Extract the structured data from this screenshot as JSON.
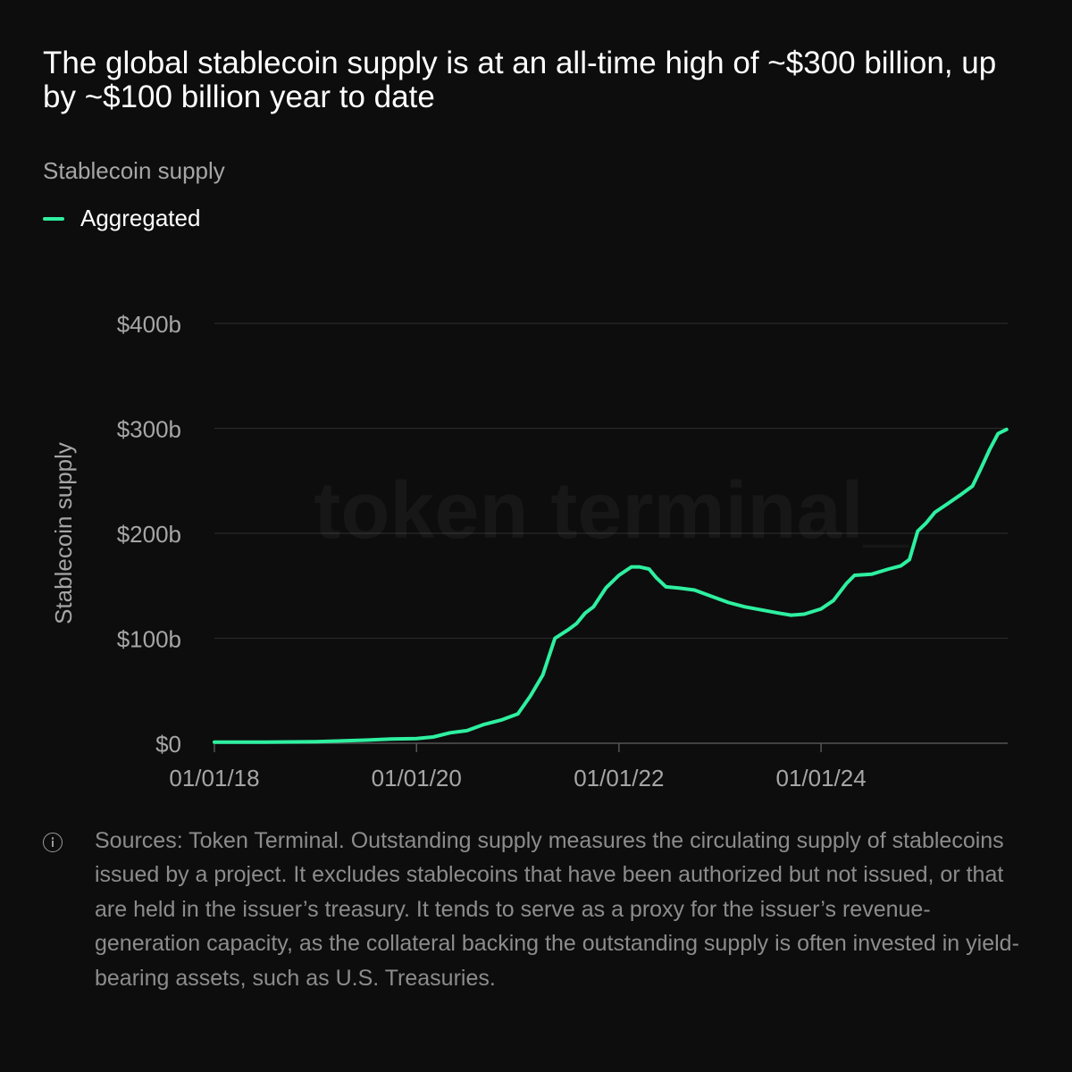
{
  "title": "The global stablecoin supply is at an all-time high of ~$300 billion, up by ~$100 billion year to date",
  "subtitle": "Stablecoin supply",
  "watermark": "token terminal_",
  "footnote": "Sources: Token Terminal. Outstanding supply measures the circulating supply of stablecoins issued by a project. It excludes stablecoins that have been authorized but not issued, or that are held in the issuer’s treasury. It tends to serve as a proxy for the issuer’s revenue-generation capacity, as the collateral backing the outstanding supply is often invested in yield-bearing assets, such as U.S. Treasuries.",
  "icons": {
    "footnote": "info-icon"
  },
  "colors": {
    "series": "#2ef0a0",
    "background": "#0d0d0d"
  },
  "chart_data": {
    "type": "line",
    "ylabel": "Stablecoin supply",
    "xlabel": "",
    "ylim": [
      0,
      400
    ],
    "yticks": [
      {
        "value": 0,
        "label": "$0"
      },
      {
        "value": 100,
        "label": "$100b"
      },
      {
        "value": 200,
        "label": "$200b"
      },
      {
        "value": 300,
        "label": "$300b"
      },
      {
        "value": 400,
        "label": "$400b"
      }
    ],
    "xlim": [
      "2018-01-01",
      "2025-11-05"
    ],
    "xticks": [
      {
        "value": "2018-01-01",
        "label": "01/01/18"
      },
      {
        "value": "2020-01-01",
        "label": "01/01/20"
      },
      {
        "value": "2022-01-01",
        "label": "01/01/22"
      },
      {
        "value": "2024-01-01",
        "label": "01/01/24"
      }
    ],
    "grid": true,
    "legend": "top-left",
    "series": [
      {
        "name": "Aggregated",
        "color": "#2ef0a0",
        "points": [
          [
            "2018-01-01",
            1
          ],
          [
            "2018-07-01",
            1
          ],
          [
            "2019-01-01",
            1.5
          ],
          [
            "2019-07-01",
            3
          ],
          [
            "2019-10-01",
            4
          ],
          [
            "2020-01-01",
            4.5
          ],
          [
            "2020-03-01",
            6
          ],
          [
            "2020-05-01",
            10
          ],
          [
            "2020-07-01",
            12
          ],
          [
            "2020-09-01",
            18
          ],
          [
            "2020-11-01",
            22
          ],
          [
            "2021-01-01",
            28
          ],
          [
            "2021-02-15",
            45
          ],
          [
            "2021-04-01",
            65
          ],
          [
            "2021-05-15",
            100
          ],
          [
            "2021-07-01",
            108
          ],
          [
            "2021-08-01",
            114
          ],
          [
            "2021-09-01",
            124
          ],
          [
            "2021-10-01",
            130
          ],
          [
            "2021-11-15",
            148
          ],
          [
            "2022-01-01",
            160
          ],
          [
            "2022-02-15",
            168
          ],
          [
            "2022-03-15",
            168
          ],
          [
            "2022-04-20",
            166
          ],
          [
            "2022-05-15",
            158
          ],
          [
            "2022-06-20",
            149
          ],
          [
            "2022-08-01",
            148
          ],
          [
            "2022-10-01",
            146
          ],
          [
            "2022-12-01",
            140
          ],
          [
            "2023-02-01",
            134
          ],
          [
            "2023-04-01",
            130
          ],
          [
            "2023-06-01",
            127
          ],
          [
            "2023-08-01",
            124
          ],
          [
            "2023-09-15",
            122
          ],
          [
            "2023-11-01",
            123
          ],
          [
            "2024-01-01",
            128
          ],
          [
            "2024-02-15",
            136
          ],
          [
            "2024-04-01",
            152
          ],
          [
            "2024-05-01",
            160
          ],
          [
            "2024-07-01",
            161
          ],
          [
            "2024-09-01",
            166
          ],
          [
            "2024-10-15",
            169
          ],
          [
            "2024-11-15",
            175
          ],
          [
            "2024-12-15",
            202
          ],
          [
            "2025-01-15",
            210
          ],
          [
            "2025-02-15",
            220
          ],
          [
            "2025-04-01",
            228
          ],
          [
            "2025-05-15",
            236
          ],
          [
            "2025-07-01",
            245
          ],
          [
            "2025-08-01",
            262
          ],
          [
            "2025-09-01",
            280
          ],
          [
            "2025-10-01",
            295
          ],
          [
            "2025-11-01",
            299
          ]
        ]
      }
    ]
  }
}
